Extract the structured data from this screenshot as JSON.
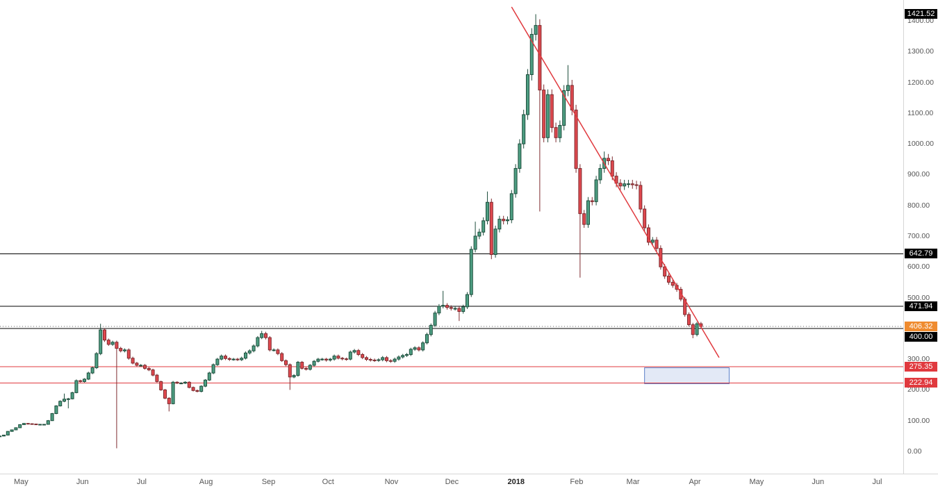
{
  "chart_data": {
    "type": "candlestick",
    "title": "",
    "x_unit": "days since 2017-05-01, 2-day candles",
    "xlim_days": [
      -6.9,
      441.4
    ],
    "ylim": [
      -72.3,
      1467.7
    ],
    "grid": false,
    "background": "#ffffff",
    "colors": {
      "up": "#4e9e82",
      "up_border": "#1d4d3c",
      "down": "#e0494f",
      "down_border": "#7e2a2e",
      "axis_text": "#555555",
      "axis_border": "#d6d6d6",
      "trendline_red": "#e0393e",
      "level_black": "#000000",
      "level_red": "#e0393e",
      "last_price_badge": "#ef8b2f"
    },
    "y_ticks": [
      0,
      100,
      200,
      300,
      400,
      500,
      600,
      700,
      800,
      900,
      1000,
      1100,
      1200,
      1300,
      1400
    ],
    "x_ticks": [
      {
        "label": "May",
        "day": 0
      },
      {
        "label": "Jun",
        "day": 31
      },
      {
        "label": "Jul",
        "day": 61
      },
      {
        "label": "Aug",
        "day": 92
      },
      {
        "label": "Sep",
        "day": 123
      },
      {
        "label": "Oct",
        "day": 153
      },
      {
        "label": "Nov",
        "day": 184
      },
      {
        "label": "Dec",
        "day": 214
      },
      {
        "label": "2018",
        "day": 245,
        "year": true
      },
      {
        "label": "Feb",
        "day": 276
      },
      {
        "label": "Mar",
        "day": 304
      },
      {
        "label": "Apr",
        "day": 335
      },
      {
        "label": "May",
        "day": 365
      },
      {
        "label": "Jun",
        "day": 396
      },
      {
        "label": "Jul",
        "day": 426
      }
    ],
    "price_labels": [
      {
        "price": 1421.52,
        "text": "1421.52",
        "bg": "#000000",
        "line": false
      },
      {
        "price": 642.79,
        "text": "642.79",
        "bg": "#000000",
        "line": true,
        "line_color": "#000000",
        "line_style": "solid"
      },
      {
        "price": 471.94,
        "text": "471.94",
        "bg": "#000000",
        "line": true,
        "line_color": "#000000",
        "line_style": "solid"
      },
      {
        "price": 406.32,
        "text": "406.32",
        "bg": "#ef8b2f",
        "line": true,
        "line_color": "#666666",
        "line_style": "dotted",
        "role": "last-price-line"
      },
      {
        "price": 400.0,
        "text": "400.00",
        "bg": "#000000",
        "line": true,
        "line_color": "#000000",
        "line_style": "solid"
      },
      {
        "price": 275.35,
        "text": "275.35",
        "bg": "#e0393e",
        "line": true,
        "line_color": "#e0393e",
        "line_style": "solid"
      },
      {
        "price": 222.94,
        "text": "222.94",
        "bg": "#e0393e",
        "line": true,
        "line_color": "#e0393e",
        "line_style": "solid"
      }
    ],
    "trendline": {
      "from": {
        "day": 247,
        "price": 1445
      },
      "to": {
        "day": 350,
        "price": 305
      },
      "color": "#e0393e"
    },
    "rectangle": {
      "day_start": 313,
      "day_end": 355,
      "price_top": 272,
      "price_bottom": 220,
      "fill": "rgba(99,134,204,0.18)",
      "stroke": "#5a7fc8"
    },
    "candles": [
      [
        -8,
        48,
        51,
        47,
        50
      ],
      [
        -6,
        50,
        54,
        49,
        53
      ],
      [
        -4,
        53,
        66,
        52,
        65
      ],
      [
        -2,
        65,
        71,
        64,
        70
      ],
      [
        0,
        70,
        78,
        69,
        77
      ],
      [
        2,
        77,
        88,
        76,
        87
      ],
      [
        4,
        87,
        92,
        86,
        91
      ],
      [
        6,
        91,
        92,
        89,
        90
      ],
      [
        8,
        90,
        91,
        88,
        89
      ],
      [
        10,
        89,
        90,
        87,
        88
      ],
      [
        12,
        88,
        89,
        87,
        88
      ],
      [
        14,
        88,
        89,
        86,
        88
      ],
      [
        16,
        88,
        102,
        87,
        100
      ],
      [
        18,
        100,
        125,
        99,
        123
      ],
      [
        20,
        123,
        150,
        121,
        148
      ],
      [
        22,
        148,
        166,
        146,
        163
      ],
      [
        24,
        163,
        188,
        160,
        170
      ],
      [
        26,
        170,
        174,
        140,
        171
      ],
      [
        28,
        171,
        194,
        169,
        191
      ],
      [
        30,
        191,
        234,
        189,
        230
      ],
      [
        32,
        230,
        233,
        224,
        227
      ],
      [
        34,
        227,
        238,
        224,
        235
      ],
      [
        36,
        235,
        259,
        232,
        255
      ],
      [
        38,
        255,
        276,
        251,
        272
      ],
      [
        40,
        272,
        323,
        268,
        318
      ],
      [
        42,
        318,
        415,
        313,
        395
      ],
      [
        44,
        395,
        401,
        356,
        362
      ],
      [
        46,
        362,
        367,
        343,
        348
      ],
      [
        48,
        348,
        360,
        343,
        355
      ],
      [
        50,
        355,
        360,
        10,
        335
      ],
      [
        52,
        335,
        340,
        322,
        327
      ],
      [
        54,
        327,
        335,
        322,
        330
      ],
      [
        56,
        330,
        335,
        298,
        303
      ],
      [
        58,
        303,
        308,
        283,
        287
      ],
      [
        60,
        287,
        291,
        276,
        280
      ],
      [
        62,
        280,
        284,
        276,
        280
      ],
      [
        64,
        280,
        284,
        266,
        270
      ],
      [
        66,
        270,
        274,
        261,
        265
      ],
      [
        68,
        265,
        269,
        244,
        248
      ],
      [
        70,
        248,
        252,
        224,
        227
      ],
      [
        72,
        227,
        230,
        197,
        200
      ],
      [
        74,
        200,
        203,
        170,
        173
      ],
      [
        76,
        173,
        176,
        130,
        155
      ],
      [
        78,
        155,
        229,
        153,
        225
      ],
      [
        80,
        225,
        228,
        219,
        222
      ],
      [
        82,
        222,
        225,
        219,
        222
      ],
      [
        84,
        222,
        228,
        219,
        225
      ],
      [
        86,
        225,
        228,
        205,
        208
      ],
      [
        88,
        208,
        211,
        195,
        198
      ],
      [
        90,
        198,
        201,
        192,
        195
      ],
      [
        92,
        195,
        215,
        192,
        212
      ],
      [
        94,
        212,
        235,
        209,
        232
      ],
      [
        96,
        232,
        259,
        229,
        255
      ],
      [
        98,
        255,
        286,
        251,
        282
      ],
      [
        100,
        282,
        304,
        278,
        300
      ],
      [
        102,
        300,
        315,
        296,
        310
      ],
      [
        104,
        310,
        315,
        297,
        302
      ],
      [
        106,
        302,
        306,
        294,
        299
      ],
      [
        108,
        299,
        304,
        295,
        300
      ],
      [
        110,
        300,
        304,
        294,
        298
      ],
      [
        112,
        298,
        308,
        294,
        303
      ],
      [
        114,
        303,
        325,
        299,
        320
      ],
      [
        116,
        320,
        332,
        315,
        327
      ],
      [
        118,
        327,
        348,
        322,
        343
      ],
      [
        120,
        343,
        375,
        338,
        370
      ],
      [
        122,
        370,
        392,
        365,
        383
      ],
      [
        124,
        383,
        389,
        364,
        370
      ],
      [
        126,
        370,
        375,
        325,
        330
      ],
      [
        128,
        330,
        335,
        325,
        330
      ],
      [
        130,
        330,
        335,
        313,
        318
      ],
      [
        132,
        318,
        323,
        291,
        295
      ],
      [
        134,
        295,
        299,
        277,
        282
      ],
      [
        136,
        282,
        286,
        200,
        242
      ],
      [
        138,
        242,
        251,
        238,
        247
      ],
      [
        140,
        247,
        294,
        243,
        290
      ],
      [
        142,
        290,
        294,
        266,
        270
      ],
      [
        144,
        270,
        274,
        263,
        267
      ],
      [
        146,
        267,
        284,
        263,
        280
      ],
      [
        148,
        280,
        297,
        276,
        293
      ],
      [
        150,
        293,
        304,
        289,
        300
      ],
      [
        152,
        300,
        304,
        295,
        300
      ],
      [
        154,
        300,
        304,
        292,
        297
      ],
      [
        156,
        297,
        304,
        292,
        300
      ],
      [
        158,
        300,
        315,
        295,
        310
      ],
      [
        160,
        310,
        315,
        299,
        303
      ],
      [
        162,
        303,
        307,
        296,
        301
      ],
      [
        164,
        301,
        305,
        295,
        300
      ],
      [
        166,
        300,
        328,
        296,
        323
      ],
      [
        168,
        323,
        333,
        318,
        328
      ],
      [
        170,
        328,
        333,
        310,
        315
      ],
      [
        172,
        315,
        320,
        300,
        305
      ],
      [
        174,
        305,
        310,
        294,
        299
      ],
      [
        176,
        299,
        304,
        292,
        297
      ],
      [
        178,
        297,
        302,
        291,
        296
      ],
      [
        180,
        296,
        303,
        291,
        298
      ],
      [
        182,
        298,
        310,
        293,
        305
      ],
      [
        184,
        305,
        310,
        290,
        295
      ],
      [
        186,
        295,
        300,
        288,
        293
      ],
      [
        188,
        293,
        305,
        288,
        300
      ],
      [
        190,
        300,
        312,
        295,
        307
      ],
      [
        192,
        307,
        317,
        302,
        312
      ],
      [
        194,
        312,
        320,
        307,
        315
      ],
      [
        196,
        315,
        337,
        310,
        332
      ],
      [
        198,
        332,
        342,
        327,
        337
      ],
      [
        200,
        337,
        342,
        325,
        330
      ],
      [
        202,
        330,
        358,
        325,
        353
      ],
      [
        204,
        353,
        386,
        348,
        380
      ],
      [
        206,
        380,
        416,
        374,
        410
      ],
      [
        208,
        410,
        457,
        404,
        450
      ],
      [
        210,
        450,
        479,
        443,
        472
      ],
      [
        212,
        472,
        522,
        465,
        475
      ],
      [
        214,
        475,
        482,
        461,
        468
      ],
      [
        216,
        468,
        475,
        458,
        465
      ],
      [
        218,
        465,
        472,
        458,
        465
      ],
      [
        220,
        465,
        472,
        424,
        455
      ],
      [
        222,
        455,
        477,
        448,
        470
      ],
      [
        224,
        470,
        518,
        463,
        510
      ],
      [
        226,
        510,
        667,
        502,
        657
      ],
      [
        228,
        657,
        747,
        647,
        700
      ],
      [
        230,
        700,
        724,
        690,
        713
      ],
      [
        232,
        713,
        761,
        702,
        750
      ],
      [
        234,
        750,
        845,
        738,
        810
      ],
      [
        236,
        810,
        822,
        625,
        640
      ],
      [
        238,
        640,
        734,
        630,
        723
      ],
      [
        240,
        723,
        766,
        712,
        755
      ],
      [
        242,
        755,
        766,
        738,
        750
      ],
      [
        244,
        750,
        764,
        738,
        753
      ],
      [
        246,
        753,
        850,
        742,
        838
      ],
      [
        248,
        838,
        934,
        825,
        920
      ],
      [
        250,
        920,
        1015,
        906,
        1000
      ],
      [
        252,
        1000,
        1111,
        985,
        1095
      ],
      [
        254,
        1095,
        1243,
        1078,
        1225
      ],
      [
        256,
        1225,
        1376,
        1206,
        1356
      ],
      [
        258,
        1356,
        1421.52,
        1336,
        1385
      ],
      [
        260,
        1385,
        1405,
        780,
        1175
      ],
      [
        262,
        1175,
        1193,
        1005,
        1020
      ],
      [
        264,
        1020,
        1177,
        1005,
        1160
      ],
      [
        266,
        1160,
        1177,
        1037,
        1053
      ],
      [
        268,
        1053,
        1069,
        1005,
        1020
      ],
      [
        270,
        1020,
        1076,
        1005,
        1060
      ],
      [
        272,
        1060,
        1191,
        1044,
        1173
      ],
      [
        274,
        1173,
        1256,
        1155,
        1190
      ],
      [
        276,
        1190,
        1208,
        1093,
        1110
      ],
      [
        278,
        1110,
        1127,
        906,
        920
      ],
      [
        280,
        920,
        934,
        565,
        773
      ],
      [
        282,
        773,
        785,
        727,
        738
      ],
      [
        284,
        738,
        827,
        727,
        815
      ],
      [
        286,
        815,
        827,
        800,
        812
      ],
      [
        288,
        812,
        896,
        800,
        883
      ],
      [
        290,
        883,
        934,
        870,
        920
      ],
      [
        292,
        920,
        975,
        906,
        953
      ],
      [
        294,
        953,
        967,
        931,
        945
      ],
      [
        296,
        945,
        959,
        882,
        895
      ],
      [
        298,
        895,
        908,
        859,
        872
      ],
      [
        300,
        872,
        885,
        850,
        863
      ],
      [
        302,
        863,
        883,
        850,
        870
      ],
      [
        304,
        870,
        883,
        857,
        870
      ],
      [
        306,
        870,
        883,
        854,
        867
      ],
      [
        308,
        867,
        880,
        852,
        865
      ],
      [
        310,
        865,
        878,
        776,
        788
      ],
      [
        312,
        788,
        800,
        716,
        727
      ],
      [
        314,
        727,
        738,
        670,
        680
      ],
      [
        316,
        680,
        697,
        670,
        687
      ],
      [
        318,
        687,
        697,
        650,
        660
      ],
      [
        320,
        660,
        670,
        591,
        600
      ],
      [
        322,
        600,
        609,
        561,
        570
      ],
      [
        324,
        570,
        579,
        542,
        550
      ],
      [
        326,
        550,
        558,
        532,
        540
      ],
      [
        328,
        540,
        548,
        519,
        527
      ],
      [
        330,
        527,
        535,
        488,
        495
      ],
      [
        332,
        495,
        502,
        438,
        445
      ],
      [
        334,
        445,
        452,
        406,
        412
      ],
      [
        336,
        412,
        418,
        368,
        380
      ],
      [
        338,
        380,
        421,
        374,
        415
      ],
      [
        340,
        415,
        421,
        400,
        406.32
      ]
    ]
  }
}
